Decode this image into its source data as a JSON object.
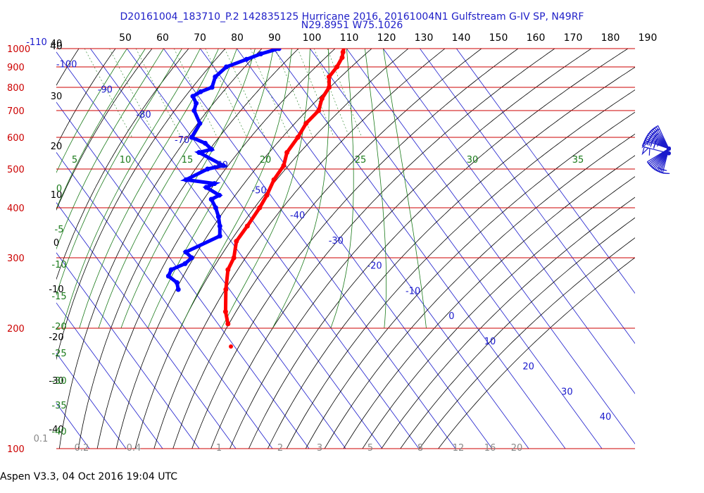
{
  "header": {
    "title_line1": "D20161004_183710_P.2 142835125 Hurricane 2016, 20161004N1 Gulfstream G-IV SP, N49RF",
    "title_line2": "N29.8951 W75.1026"
  },
  "footer": {
    "text": "Aspen V3.3, 04 Oct 2016  19:04 UTC"
  },
  "colors": {
    "isobar": "#cc0000",
    "isotherm": "#1a1acc",
    "dry_adiabat": "#000000",
    "moist_adiabat": "#1a7a1a",
    "mixing_ratio": "#1a7a1a",
    "temperature_trace": "#ff0000",
    "dewpoint_trace": "#0000ff",
    "pressure_label": "#cc0000",
    "top_scale_label": "#000000",
    "mixing_label": "#888888"
  },
  "chart_data": {
    "type": "skew-t log-p",
    "title": "D20161004_183710_P.2 142835125 Hurricane 2016, 20161004N1 Gulfstream G-IV SP, N49RF",
    "subtitle": "N29.8951 W75.1026",
    "pressure_axis": {
      "scale": "log",
      "range_hpa": [
        1000,
        100
      ],
      "tick_labels": [
        "100",
        "200",
        "300",
        "400",
        "500",
        "600",
        "700",
        "800",
        "900",
        "1000"
      ]
    },
    "top_scale_labels": [
      "40",
      "50",
      "60",
      "70",
      "80",
      "90",
      "100",
      "110",
      "120",
      "130",
      "140",
      "150",
      "160",
      "170",
      "180",
      "190"
    ],
    "isotherm_labels": [
      "-110",
      "-100",
      "-90",
      "-80",
      "-70",
      "-60",
      "-50",
      "-40",
      "-30",
      "-20",
      "-10",
      "0",
      "10",
      "20",
      "30",
      "40"
    ],
    "isotherm_label_positions": [
      -110,
      -100,
      -90,
      -80,
      -70,
      -60,
      -50,
      -40,
      -30,
      -20,
      -10,
      0,
      10,
      20,
      30,
      40
    ],
    "left_scale_labels": [
      "40",
      "30",
      "20",
      "10",
      "0",
      "-10",
      "-20",
      "-30",
      "-40"
    ],
    "moist_adiabat_labels": [
      "5",
      "10",
      "15",
      "20",
      "25",
      "30",
      "35"
    ],
    "moist_adiabat_left_labels": [
      "0",
      "-5",
      "-10",
      "-15",
      "-20",
      "-25",
      "-30",
      "-35",
      "-40"
    ],
    "mixing_ratio_labels": [
      "0.1",
      "0.2",
      "0.4",
      "1",
      "2",
      "3",
      "5",
      "8",
      "12",
      "16",
      "20"
    ],
    "mixing_ratio_values": [
      0.1,
      0.2,
      0.4,
      1,
      2,
      3,
      5,
      8,
      12,
      16,
      20
    ],
    "temperature_c": {
      "pressure_hpa": [
        205,
        220,
        250,
        280,
        300,
        330,
        360,
        400,
        430,
        470,
        510,
        550,
        600,
        650,
        700,
        750,
        800,
        850,
        900,
        950,
        980,
        1010
      ],
      "values": [
        -57.3,
        -55.5,
        -51,
        -46.5,
        -42.5,
        -38.5,
        -32.5,
        -25.5,
        -21,
        -16,
        -10.5,
        -7,
        -1,
        4,
        10,
        13.3,
        17.5,
        19.6,
        23.7,
        27,
        28.3,
        29.7
      ]
    },
    "dewpoint_c": {
      "pressure_hpa": [
        250,
        260,
        270,
        280,
        290,
        300,
        310,
        340,
        360,
        380,
        400,
        420,
        430,
        450,
        460,
        470,
        500,
        510,
        550,
        560,
        580,
        600,
        650,
        700,
        730,
        760,
        780,
        800,
        850,
        900,
        940,
        970,
        1000
      ],
      "values": [
        -64,
        -63,
        -64,
        -62,
        -57,
        -54,
        -54.5,
        -42,
        -40,
        -38.5,
        -37.5,
        -37,
        -34,
        -36,
        -33,
        -40,
        -32,
        -27,
        -31,
        -27,
        -27.5,
        -30,
        -25,
        -24,
        -22,
        -21.5,
        -18.5,
        -14.5,
        -11.5,
        -6.5,
        0.5,
        5.5,
        11.5
      ]
    },
    "isolated_point": {
      "pressure_hpa": 180,
      "temperature_c": -61
    },
    "wind_barbs": {
      "pressure_hpa": [
        185,
        205,
        230,
        260,
        300,
        330,
        360,
        400,
        430,
        460,
        500,
        540,
        580,
        610,
        640,
        680,
        720,
        760,
        800,
        840,
        880,
        920,
        960,
        990
      ],
      "speed_kt": [
        60,
        55,
        50,
        45,
        40,
        35,
        35,
        30,
        25,
        25,
        20,
        15,
        10,
        10,
        10,
        10,
        10,
        10,
        10,
        15,
        15,
        15,
        15,
        15
      ]
    }
  }
}
